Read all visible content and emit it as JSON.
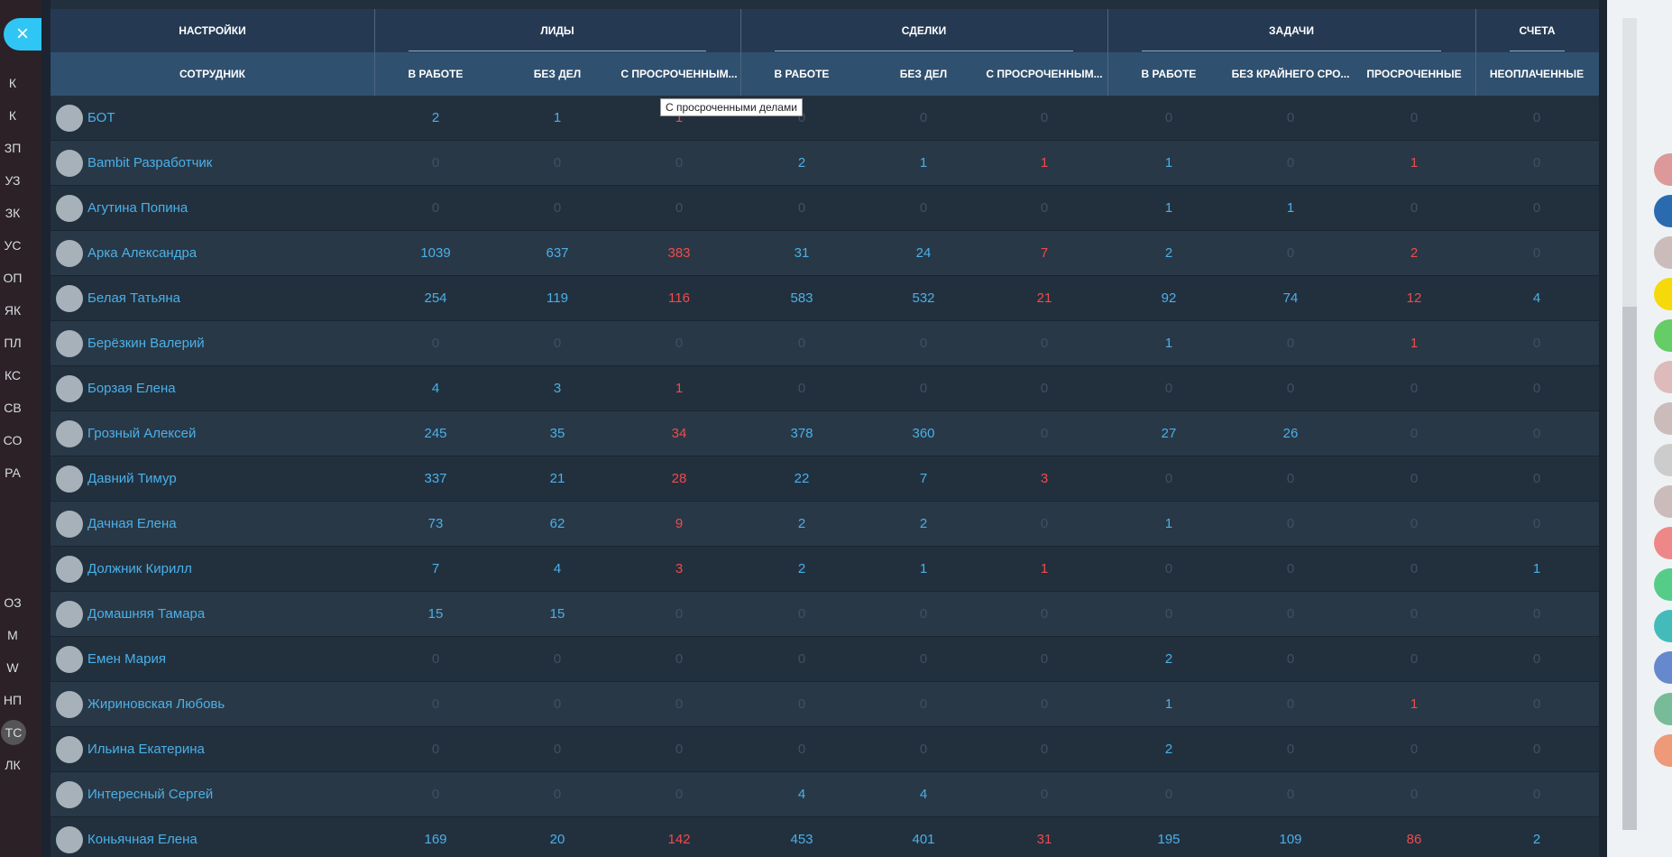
{
  "close_button": "×",
  "sidebar": [
    "К",
    "К",
    "ЗП",
    "УЗ",
    "ЗК",
    "УС",
    "ОП",
    "ЯК",
    "ПЛ",
    "КС",
    "СВ",
    "СО",
    "РА",
    "ОЗ",
    "М",
    "W",
    "НП",
    "ТС",
    "ЛК"
  ],
  "table": {
    "settings_label": "НАСТРОЙКИ",
    "employee_label": "СОТРУДНИК",
    "groups": [
      {
        "title": "ЛИДЫ",
        "span": 3
      },
      {
        "title": "СДЕЛКИ",
        "span": 3
      },
      {
        "title": "ЗАДАЧИ",
        "span": 3
      },
      {
        "title": "СЧЕТА",
        "span": 1
      }
    ],
    "columns": [
      "В РАБОТЕ",
      "БЕЗ ДЕЛ",
      "С ПРОСРОЧЕННЫМ...",
      "В РАБОТЕ",
      "БЕЗ ДЕЛ",
      "С ПРОСРОЧЕННЫМ...",
      "В РАБОТЕ",
      "БЕЗ КРАЙНЕГО СРО...",
      "ПРОСРОЧЕННЫЕ",
      "НЕОПЛАЧЕННЫЕ"
    ],
    "overdue_columns": [
      2,
      5,
      8
    ],
    "rows": [
      {
        "name": "БОТ",
        "values": [
          2,
          1,
          1,
          0,
          0,
          0,
          0,
          0,
          0,
          0
        ]
      },
      {
        "name": "Bambit Разработчик",
        "values": [
          0,
          0,
          0,
          2,
          1,
          1,
          1,
          0,
          1,
          0
        ]
      },
      {
        "name": "Агутина Попина",
        "values": [
          0,
          0,
          0,
          0,
          0,
          0,
          1,
          1,
          0,
          0
        ]
      },
      {
        "name": "Арка Александра",
        "values": [
          1039,
          637,
          383,
          31,
          24,
          7,
          2,
          0,
          2,
          0
        ]
      },
      {
        "name": "Белая Татьяна",
        "values": [
          254,
          119,
          116,
          583,
          532,
          21,
          92,
          74,
          12,
          4
        ]
      },
      {
        "name": "Берёзкин Валерий",
        "values": [
          0,
          0,
          0,
          0,
          0,
          0,
          1,
          0,
          1,
          0
        ]
      },
      {
        "name": "Борзая Елена",
        "values": [
          4,
          3,
          1,
          0,
          0,
          0,
          0,
          0,
          0,
          0
        ]
      },
      {
        "name": "Грозный Алексей",
        "values": [
          245,
          35,
          34,
          378,
          360,
          0,
          27,
          26,
          0,
          0
        ]
      },
      {
        "name": "Давний Тимур",
        "values": [
          337,
          21,
          28,
          22,
          7,
          3,
          0,
          0,
          0,
          0
        ]
      },
      {
        "name": "Дачная Елена",
        "values": [
          73,
          62,
          9,
          2,
          2,
          0,
          1,
          0,
          0,
          0
        ]
      },
      {
        "name": "Должник Кирилл",
        "values": [
          7,
          4,
          3,
          2,
          1,
          1,
          0,
          0,
          0,
          1
        ]
      },
      {
        "name": "Домашняя Тамара",
        "values": [
          15,
          15,
          0,
          0,
          0,
          0,
          0,
          0,
          0,
          0
        ]
      },
      {
        "name": "Емен Мария",
        "values": [
          0,
          0,
          0,
          0,
          0,
          0,
          2,
          0,
          0,
          0
        ]
      },
      {
        "name": "Жириновская Любовь",
        "values": [
          0,
          0,
          0,
          0,
          0,
          0,
          1,
          0,
          1,
          0
        ]
      },
      {
        "name": "Ильина Екатерина",
        "values": [
          0,
          0,
          0,
          0,
          0,
          0,
          2,
          0,
          0,
          0
        ]
      },
      {
        "name": "Интересный Сергей",
        "values": [
          0,
          0,
          0,
          4,
          4,
          0,
          0,
          0,
          0,
          0
        ]
      },
      {
        "name": "Коньячная Елена",
        "values": [
          169,
          20,
          142,
          453,
          401,
          31,
          195,
          109,
          86,
          2
        ]
      }
    ]
  },
  "tooltip": "С просроченными делами"
}
